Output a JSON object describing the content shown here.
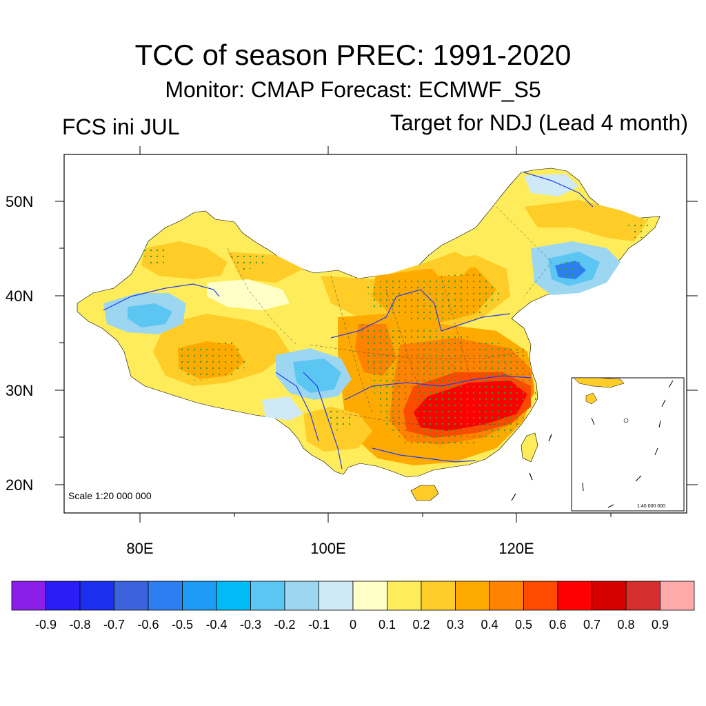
{
  "title": "TCC of season PREC: 1991-2020",
  "subtitle": "Monitor: CMAP   Forecast: ECMWF_S5",
  "left_label": "FCS ini JUL",
  "right_label": "Target for NDJ (Lead 4 month)",
  "map": {
    "lat_labels": [
      "50N",
      "40N",
      "30N",
      "20N"
    ],
    "lat_values": [
      50,
      40,
      30,
      20
    ],
    "lon_labels": [
      "80E",
      "100E",
      "120E"
    ],
    "lon_values": [
      80,
      100,
      120
    ],
    "scale_text": "Scale 1:20 000 000",
    "inset_scale_text": "1:40 000 000"
  },
  "legend": {
    "labels": [
      "-0.9",
      "-0.8",
      "-0.7",
      "-0.6",
      "-0.5",
      "-0.4",
      "-0.3",
      "-0.2",
      "-0.1",
      "0",
      "0.1",
      "0.2",
      "0.3",
      "0.4",
      "0.5",
      "0.6",
      "0.7",
      "0.8",
      "0.9"
    ],
    "colors": [
      "#8b1ee8",
      "#2b1ef5",
      "#1b30ee",
      "#3c63de",
      "#2d7ef0",
      "#1e9bf5",
      "#00bbf5",
      "#5cc6f2",
      "#9dd6f0",
      "#cfe9f7",
      "#ffffc8",
      "#ffec5a",
      "#ffcc28",
      "#ffaa00",
      "#ff8200",
      "#ff4b00",
      "#ff0000",
      "#d50000",
      "#d42e2e",
      "#ffaaaa"
    ]
  },
  "colors": {
    "yellow": "#ffec5a",
    "gold": "#ffcc28",
    "orange": "#ffaa00",
    "dark_orange": "#ff8200",
    "red_orange": "#ff4b00",
    "red": "#ff0000",
    "light_blue": "#9dd6f0",
    "sky_blue": "#5cc6f2",
    "blue": "#2d7ef0",
    "pale_yellow": "#ffffc8",
    "significance_dots": "#2ca02c",
    "rivers": "#1e3cf0"
  }
}
